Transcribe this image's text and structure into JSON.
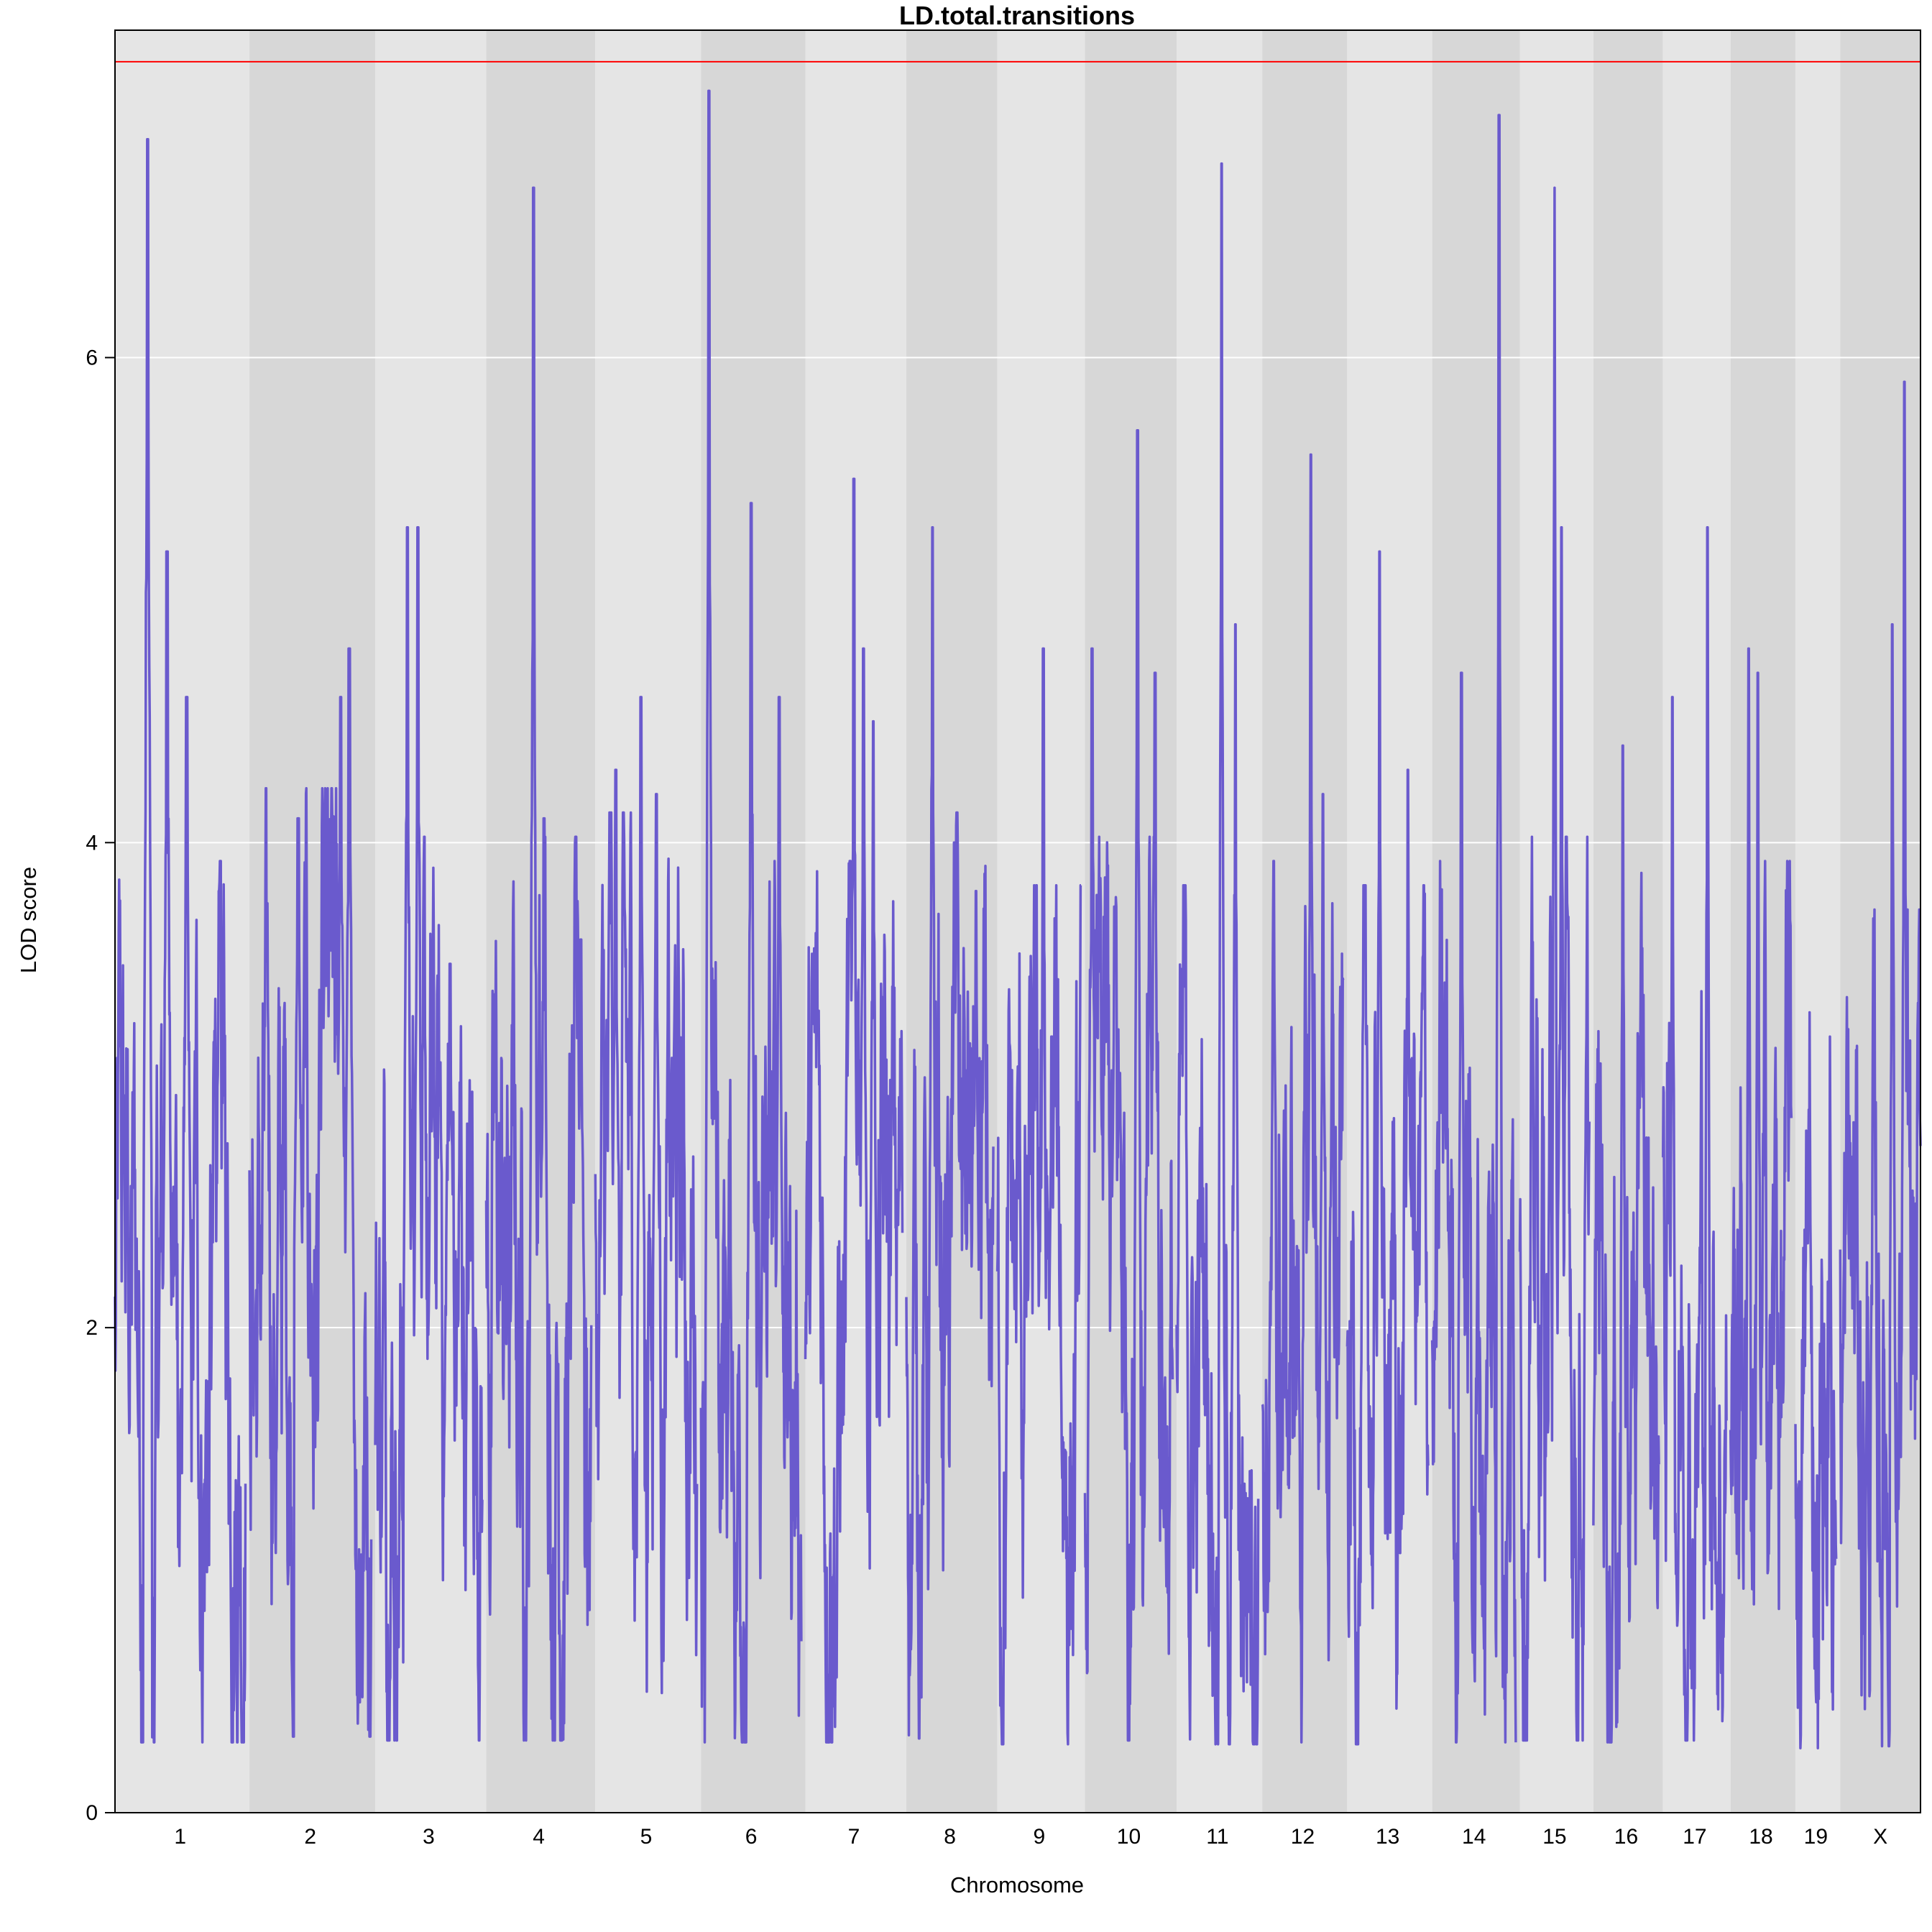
{
  "chart_data": {
    "type": "line",
    "title": "LD.total.transitions",
    "xlabel": "Chromosome",
    "ylabel": "LOD score",
    "ylim": [
      0,
      7.35
    ],
    "yticks": [
      0,
      2,
      4,
      6
    ],
    "grid": true,
    "threshold": 7.22,
    "colors": {
      "line": "#6a5acd",
      "threshold": "#ff0000",
      "band_light": "#e5e5e5",
      "band_dark": "#d7d7d7",
      "grid": "#ffffff"
    },
    "chromosomes": [
      {
        "name": "1",
        "length": 195,
        "peaks": [
          [
            0.25,
            6.9
          ],
          [
            0.4,
            5.2
          ],
          [
            0.55,
            4.6
          ],
          [
            0.8,
            3.8
          ]
        ],
        "base": 1.9
      },
      {
        "name": "2",
        "length": 182,
        "peaks": [
          [
            0.4,
            4.1
          ],
          [
            0.75,
            4.6
          ],
          [
            0.82,
            4.8
          ]
        ],
        "base": 2.2
      },
      {
        "name": "3",
        "length": 160,
        "peaks": [
          [
            0.3,
            5.3
          ],
          [
            0.4,
            5.3
          ],
          [
            0.7,
            3.5
          ]
        ],
        "base": 2.0
      },
      {
        "name": "4",
        "length": 157,
        "peaks": [
          [
            0.45,
            6.7
          ],
          [
            0.55,
            4.1
          ],
          [
            0.9,
            3.6
          ]
        ],
        "base": 2.0
      },
      {
        "name": "5",
        "length": 152,
        "peaks": [
          [
            0.2,
            4.3
          ],
          [
            0.45,
            4.6
          ],
          [
            0.6,
            4.2
          ]
        ],
        "base": 2.1
      },
      {
        "name": "6",
        "length": 150,
        "peaks": [
          [
            0.08,
            7.1
          ],
          [
            0.5,
            5.4
          ],
          [
            0.78,
            4.6
          ]
        ],
        "base": 1.9
      },
      {
        "name": "7",
        "length": 145,
        "peaks": [
          [
            0.5,
            5.5
          ],
          [
            0.6,
            4.8
          ],
          [
            0.7,
            4.5
          ]
        ],
        "base": 1.9
      },
      {
        "name": "8",
        "length": 130,
        "peaks": [
          [
            0.3,
            5.3
          ],
          [
            0.55,
            4.0
          ],
          [
            0.8,
            3.8
          ]
        ],
        "base": 2.1
      },
      {
        "name": "9",
        "length": 125,
        "peaks": [
          [
            0.55,
            4.8
          ],
          [
            0.65,
            3.2
          ]
        ],
        "base": 1.8
      },
      {
        "name": "10",
        "length": 131,
        "peaks": [
          [
            0.08,
            4.8
          ],
          [
            0.6,
            5.7
          ],
          [
            0.8,
            4.7
          ]
        ],
        "base": 2.0
      },
      {
        "name": "11",
        "length": 122,
        "peaks": [
          [
            0.55,
            6.8
          ],
          [
            0.72,
            4.9
          ]
        ],
        "base": 1.8
      },
      {
        "name": "12",
        "length": 121,
        "peaks": [
          [
            0.6,
            5.6
          ],
          [
            0.75,
            4.2
          ]
        ],
        "base": 1.9
      },
      {
        "name": "13",
        "length": 121,
        "peaks": [
          [
            0.4,
            5.2
          ],
          [
            0.75,
            4.3
          ]
        ],
        "base": 1.8
      },
      {
        "name": "14",
        "length": 125,
        "peaks": [
          [
            0.35,
            4.7
          ],
          [
            0.8,
            7.0
          ]
        ],
        "base": 1.9
      },
      {
        "name": "15",
        "length": 104,
        "peaks": [
          [
            0.5,
            6.7
          ],
          [
            0.6,
            5.3
          ]
        ],
        "base": 2.0
      },
      {
        "name": "16",
        "length": 98,
        "peaks": [
          [
            0.45,
            4.4
          ],
          [
            0.7,
            3.2
          ]
        ],
        "base": 1.9
      },
      {
        "name": "17",
        "length": 95,
        "peaks": [
          [
            0.15,
            4.6
          ],
          [
            0.7,
            5.3
          ]
        ],
        "base": 2.0
      },
      {
        "name": "18",
        "length": 91,
        "peaks": [
          [
            0.3,
            4.8
          ],
          [
            0.45,
            4.7
          ]
        ],
        "base": 1.9
      },
      {
        "name": "19",
        "length": 61,
        "peaks": [
          [
            0.35,
            3.3
          ],
          [
            0.85,
            3.2
          ]
        ],
        "base": 1.6
      },
      {
        "name": "X",
        "length": 120,
        "peaks": [
          [
            0.65,
            4.9
          ],
          [
            0.8,
            5.9
          ]
        ],
        "base": 1.7
      }
    ]
  }
}
